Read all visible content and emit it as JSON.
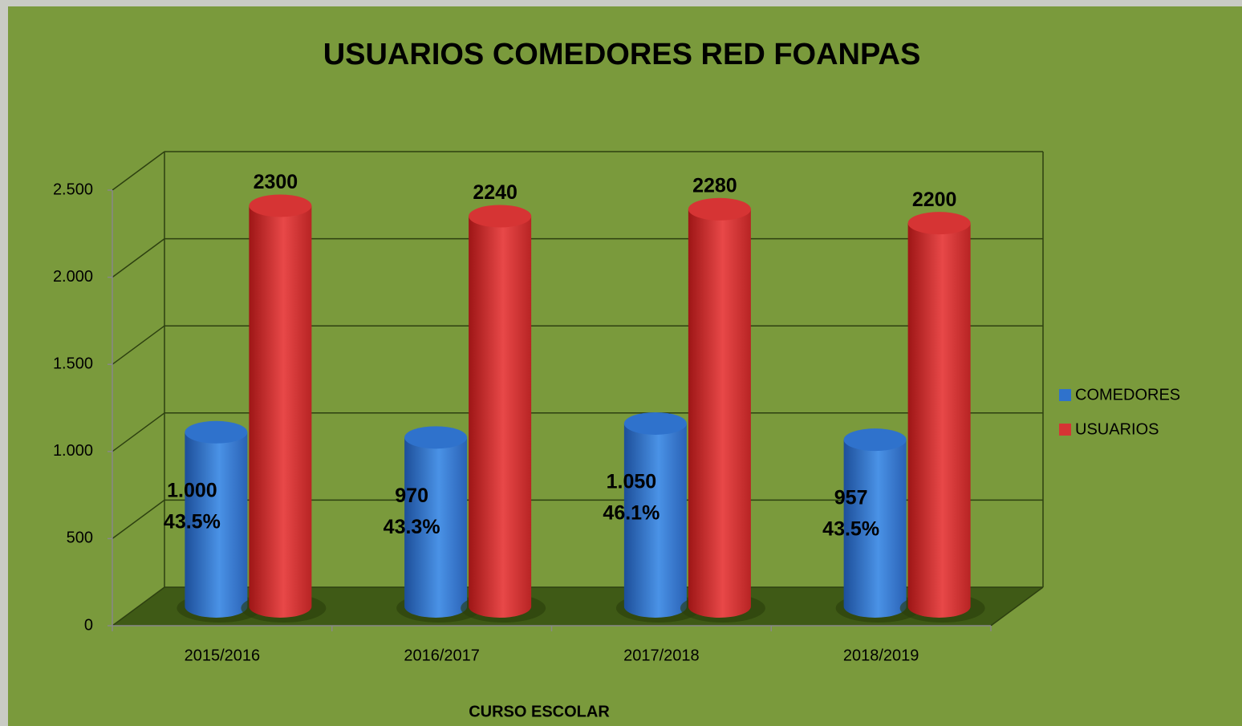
{
  "chart_data": {
    "type": "bar3d",
    "title": "USUARIOS COMEDORES RED FOANPAS",
    "x_label": "CURSO ESCOLAR",
    "categories": [
      "2015/2016",
      "2016/2017",
      "2017/2018",
      "2018/2019"
    ],
    "series": [
      {
        "name": "COMEDORES",
        "color": "#2f72cc",
        "values": [
          1000,
          970,
          1050,
          957
        ],
        "value_labels": [
          "1.000",
          "970",
          "1.050",
          "957"
        ],
        "share_labels": [
          "43.5%",
          "43.3%",
          "46.1%",
          "43.5%"
        ]
      },
      {
        "name": "USUARIOS",
        "color": "#d63434",
        "values": [
          2300,
          2240,
          2280,
          2200
        ]
      }
    ],
    "ylim": [
      0,
      2500
    ],
    "yticks": [
      0,
      500,
      {
        "value": 1000,
        "label": "1.000"
      },
      {
        "value": 1500,
        "label": "1.500"
      },
      {
        "value": 2000,
        "label": "2.000"
      },
      {
        "value": 2500,
        "label": "2.500"
      }
    ],
    "grid": true,
    "legend": "right"
  }
}
